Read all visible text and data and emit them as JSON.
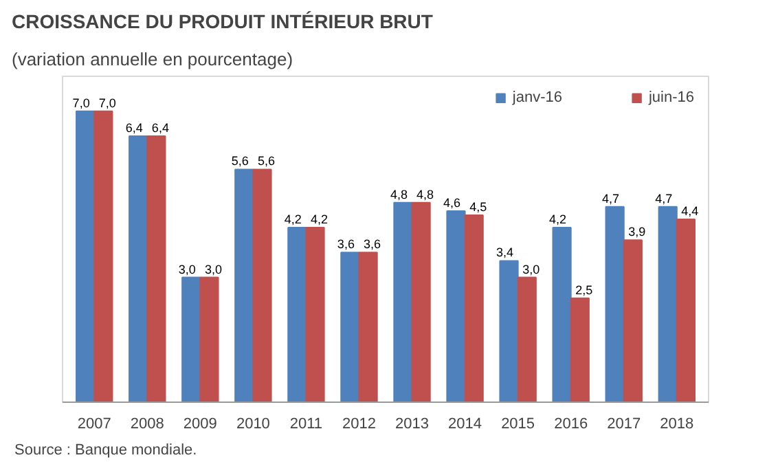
{
  "chart_data": {
    "type": "bar",
    "title": "CROISSANCE DU PRODUIT INTÉRIEUR BRUT",
    "subtitle": "(variation annuelle en pourcentage)",
    "categories": [
      "2007",
      "2008",
      "2009",
      "2010",
      "2011",
      "2012",
      "2013",
      "2014",
      "2015",
      "2016",
      "2017",
      "2018"
    ],
    "series": [
      {
        "name": "janv-16",
        "color": "#4f81bd",
        "values": [
          7.0,
          6.4,
          3.0,
          5.6,
          4.2,
          3.6,
          4.8,
          4.6,
          3.4,
          4.2,
          4.7,
          4.7
        ],
        "value_labels": [
          "7,0",
          "6,4",
          "3,0",
          "5,6",
          "4,2",
          "3,6",
          "4,8",
          "4,6",
          "3,4",
          "4,2",
          "4,7",
          "4,7"
        ]
      },
      {
        "name": "juin-16",
        "color": "#c0504d",
        "values": [
          7.0,
          6.4,
          3.0,
          5.6,
          4.2,
          3.6,
          4.8,
          4.5,
          3.0,
          2.5,
          3.9,
          4.4
        ],
        "value_labels": [
          "7,0",
          "6,4",
          "3,0",
          "5,6",
          "4,2",
          "3,6",
          "4,8",
          "4,5",
          "3,0",
          "2,5",
          "3,9",
          "4,4"
        ]
      }
    ],
    "legend": "top right",
    "grid": false,
    "annotations": [
      "Source :  Banque mondiale."
    ]
  }
}
